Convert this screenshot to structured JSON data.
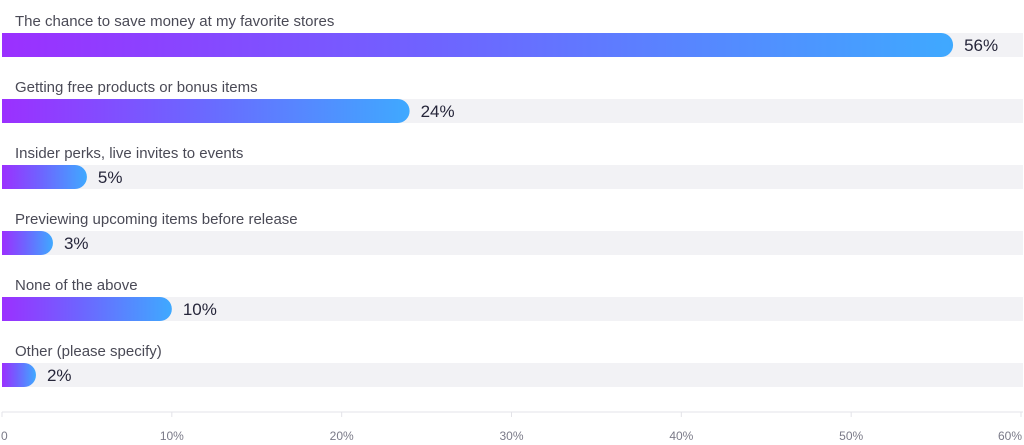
{
  "chart_data": {
    "type": "bar",
    "orientation": "horizontal",
    "categories": [
      "The chance to save money at my favorite stores",
      "Getting free products or bonus items",
      "Insider perks, live invites to events",
      "Previewing upcoming items before release",
      "None of the above",
      "Other (please specify)"
    ],
    "values": [
      56,
      24,
      5,
      3,
      10,
      2
    ],
    "value_labels": [
      "56%",
      "24%",
      "5%",
      "3%",
      "10%",
      "2%"
    ],
    "xlim": [
      0,
      60
    ],
    "x_ticks": [
      0,
      10,
      20,
      30,
      40,
      50,
      60
    ],
    "x_tick_labels": [
      "0",
      "10%",
      "20%",
      "30%",
      "40%",
      "50%",
      "60%"
    ],
    "title": "",
    "xlabel": "",
    "ylabel": "",
    "grid": false,
    "legend": "none",
    "colors": {
      "bar_gradient_start": "#9b30ff",
      "bar_gradient_mid": "#6f63ff",
      "bar_gradient_end": "#3fa9ff",
      "track": "#f2f2f5",
      "axis": "#e3e3e8",
      "label_text": "#4a4a56",
      "value_text": "#26263a",
      "tick_text": "#7a7a88"
    }
  }
}
